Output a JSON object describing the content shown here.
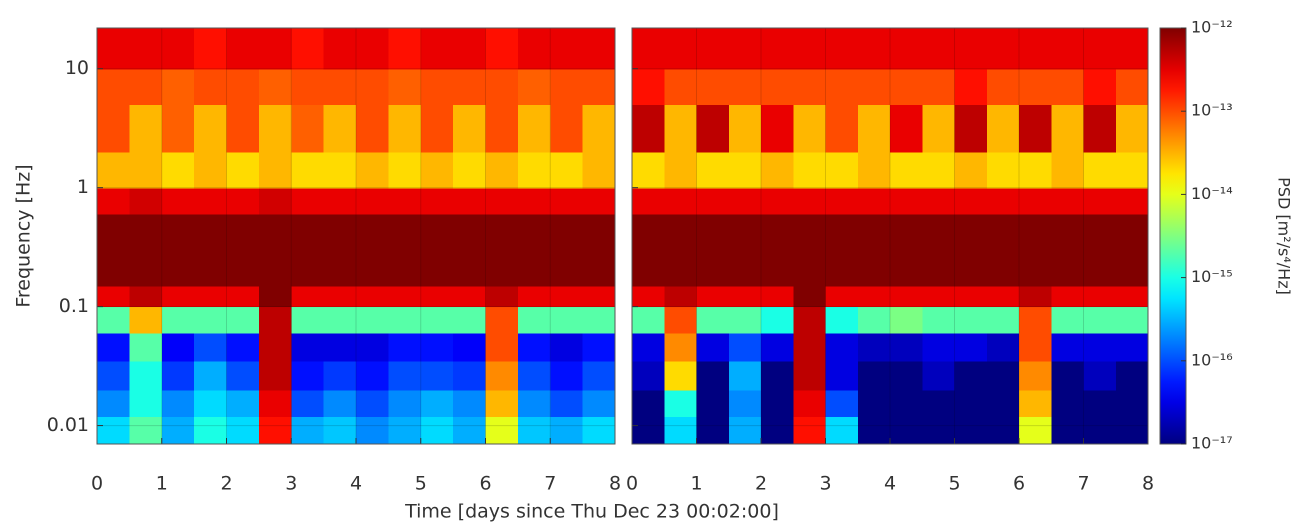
{
  "chart_data": {
    "type": "heatmap",
    "xlabel": "Time [days since Thu Dec 23 00:02:00]",
    "ylabel": "Frequency [Hz]",
    "colorbar_label": "PSD [m²/s⁴/Hz]",
    "log_y": true,
    "log_color": true,
    "colormap": "jet",
    "grid": true,
    "xlim": [
      0,
      8
    ],
    "xticks": [
      0,
      1,
      2,
      3,
      4,
      5,
      6,
      7,
      8
    ],
    "ylim": [
      0.007,
      22
    ],
    "yticks": [
      0.01,
      0.1,
      1,
      10
    ],
    "clim": [
      1e-17,
      1e-12
    ],
    "cticks": [
      {
        "value": 1e-17,
        "label": "10⁻¹⁷"
      },
      {
        "value": 1e-16,
        "label": "10⁻¹⁶"
      },
      {
        "value": 1e-15,
        "label": "10⁻¹⁵"
      },
      {
        "value": 1e-14,
        "label": "10⁻¹⁴"
      },
      {
        "value": 1e-13,
        "label": "10⁻¹³"
      },
      {
        "value": 1e-12,
        "label": "10⁻¹²"
      }
    ],
    "x_edges": [
      0,
      0.5,
      1,
      1.5,
      2,
      2.5,
      3,
      3.5,
      4,
      4.5,
      5,
      5.5,
      6,
      6.5,
      7,
      7.5,
      8
    ],
    "y_edges": [
      0.007,
      0.012,
      0.02,
      0.035,
      0.06,
      0.1,
      0.15,
      0.3,
      0.6,
      1,
      2,
      5,
      10,
      22
    ],
    "panels": [
      {
        "z": [
          [
            5e-16,
            2e-15,
            3e-16,
            1e-15,
            5e-16,
            2e-13,
            3e-16,
            4e-16,
            2e-16,
            3e-16,
            5e-16,
            3e-16,
            1e-14,
            4e-16,
            3e-16,
            5e-16
          ],
          [
            2e-16,
            1e-15,
            2e-16,
            5e-16,
            3e-16,
            3e-13,
            1e-16,
            2e-16,
            1e-16,
            2e-16,
            3e-16,
            2e-16,
            3e-14,
            2e-16,
            1e-16,
            2e-16
          ],
          [
            1e-16,
            1e-15,
            8e-17,
            3e-16,
            1e-16,
            5e-13,
            5e-17,
            8e-17,
            5e-17,
            1e-16,
            1e-16,
            8e-17,
            5e-14,
            1e-16,
            5e-17,
            1e-16
          ],
          [
            5e-17,
            2e-15,
            4e-17,
            1e-16,
            5e-17,
            5e-13,
            3e-17,
            3e-17,
            3e-17,
            5e-17,
            5e-17,
            4e-17,
            1e-13,
            5e-17,
            3e-17,
            5e-17
          ],
          [
            2e-15,
            3e-14,
            2e-15,
            2e-15,
            2e-15,
            5e-13,
            2e-15,
            2e-15,
            2e-15,
            2e-15,
            2e-15,
            2e-15,
            1e-13,
            2e-15,
            2e-15,
            2e-15
          ],
          [
            3e-13,
            5e-13,
            3e-13,
            3e-13,
            3e-13,
            1e-12,
            3e-13,
            3e-13,
            3e-13,
            3e-13,
            3e-13,
            3e-13,
            5e-13,
            3e-13,
            3e-13,
            3e-13
          ],
          [
            1e-12,
            1e-12,
            1e-12,
            1e-12,
            1e-12,
            1e-12,
            1e-12,
            1e-12,
            1e-12,
            1e-12,
            1e-12,
            1e-12,
            1e-12,
            1e-12,
            1e-12,
            1e-12
          ],
          [
            1e-12,
            1e-12,
            1e-12,
            1e-12,
            1e-12,
            1e-12,
            1e-12,
            1e-12,
            1e-12,
            1e-12,
            1e-12,
            1e-12,
            1e-12,
            1e-12,
            1e-12,
            1e-12
          ],
          [
            3e-13,
            4e-13,
            3e-13,
            3e-13,
            3e-13,
            4e-13,
            3e-13,
            3e-13,
            3e-13,
            3e-13,
            3e-13,
            3e-13,
            3e-13,
            3e-13,
            3e-13,
            3e-13
          ],
          [
            3e-14,
            3e-14,
            2e-14,
            3e-14,
            2e-14,
            3e-14,
            2e-14,
            2e-14,
            3e-14,
            2e-14,
            3e-14,
            2e-14,
            3e-14,
            2e-14,
            2e-14,
            3e-14
          ],
          [
            1e-13,
            3e-14,
            8e-14,
            3e-14,
            1e-13,
            3e-14,
            8e-14,
            3e-14,
            1e-13,
            3e-14,
            1e-13,
            3e-14,
            1e-13,
            3e-14,
            1e-13,
            3e-14
          ],
          [
            1e-13,
            1e-13,
            8e-14,
            1e-13,
            1e-13,
            8e-14,
            1e-13,
            1e-13,
            1e-13,
            8e-14,
            1e-13,
            1e-13,
            1e-13,
            8e-14,
            1e-13,
            1e-13
          ],
          [
            3e-13,
            3e-13,
            3e-13,
            2e-13,
            3e-13,
            3e-13,
            2e-13,
            3e-13,
            3e-13,
            2e-13,
            3e-13,
            3e-13,
            2e-13,
            3e-13,
            3e-13,
            3e-13
          ]
        ]
      },
      {
        "z": [
          [
            1e-17,
            5e-16,
            1e-17,
            3e-16,
            1e-17,
            2e-13,
            5e-16,
            1e-17,
            1e-17,
            1e-17,
            1e-17,
            1e-17,
            1e-14,
            1e-17,
            1e-17,
            1e-17
          ],
          [
            1e-17,
            1e-15,
            1e-17,
            2e-16,
            1e-17,
            3e-13,
            1e-16,
            1e-17,
            1e-17,
            1e-17,
            1e-17,
            1e-17,
            3e-14,
            1e-17,
            1e-17,
            1e-17
          ],
          [
            2e-17,
            2e-14,
            1e-17,
            3e-16,
            1e-17,
            5e-13,
            3e-17,
            1e-17,
            1e-17,
            2e-17,
            1e-17,
            1e-17,
            5e-14,
            1e-17,
            2e-17,
            1e-17
          ],
          [
            3e-17,
            5e-14,
            3e-17,
            1e-16,
            3e-17,
            5e-13,
            3e-17,
            2e-17,
            2e-17,
            3e-17,
            3e-17,
            2e-17,
            1e-13,
            3e-17,
            3e-17,
            3e-17
          ],
          [
            2e-15,
            1e-13,
            2e-15,
            2e-15,
            1e-15,
            5e-13,
            1e-15,
            2e-15,
            3e-15,
            2e-15,
            2e-15,
            2e-15,
            1e-13,
            2e-15,
            2e-15,
            2e-15
          ],
          [
            3e-13,
            5e-13,
            3e-13,
            3e-13,
            3e-13,
            1e-12,
            3e-13,
            3e-13,
            3e-13,
            3e-13,
            3e-13,
            3e-13,
            5e-13,
            3e-13,
            3e-13,
            3e-13
          ],
          [
            1e-12,
            1e-12,
            1e-12,
            1e-12,
            1e-12,
            1e-12,
            1e-12,
            1e-12,
            1e-12,
            1e-12,
            1e-12,
            1e-12,
            1e-12,
            1e-12,
            1e-12,
            1e-12
          ],
          [
            1e-12,
            1e-12,
            1e-12,
            1e-12,
            1e-12,
            1e-12,
            1e-12,
            1e-12,
            1e-12,
            1e-12,
            1e-12,
            1e-12,
            1e-12,
            1e-12,
            1e-12,
            1e-12
          ],
          [
            3e-13,
            3e-13,
            3e-13,
            3e-13,
            3e-13,
            3e-13,
            3e-13,
            3e-13,
            3e-13,
            3e-13,
            3e-13,
            3e-13,
            3e-13,
            3e-13,
            3e-13,
            3e-13
          ],
          [
            2e-14,
            3e-14,
            2e-14,
            2e-14,
            3e-14,
            2e-14,
            2e-14,
            3e-14,
            2e-14,
            2e-14,
            3e-14,
            2e-14,
            2e-14,
            3e-14,
            2e-14,
            2e-14
          ],
          [
            5e-13,
            3e-14,
            5e-13,
            3e-14,
            3e-13,
            3e-14,
            1e-13,
            3e-14,
            3e-13,
            3e-14,
            5e-13,
            3e-14,
            5e-13,
            3e-14,
            5e-13,
            3e-14
          ],
          [
            2e-13,
            1e-13,
            1e-13,
            1e-13,
            1e-13,
            1e-13,
            1e-13,
            1e-13,
            1e-13,
            1e-13,
            2e-13,
            1e-13,
            1e-13,
            1e-13,
            2e-13,
            1e-13
          ],
          [
            3e-13,
            3e-13,
            3e-13,
            3e-13,
            3e-13,
            3e-13,
            3e-13,
            3e-13,
            3e-13,
            3e-13,
            3e-13,
            3e-13,
            3e-13,
            3e-13,
            3e-13,
            3e-13
          ]
        ]
      }
    ]
  }
}
